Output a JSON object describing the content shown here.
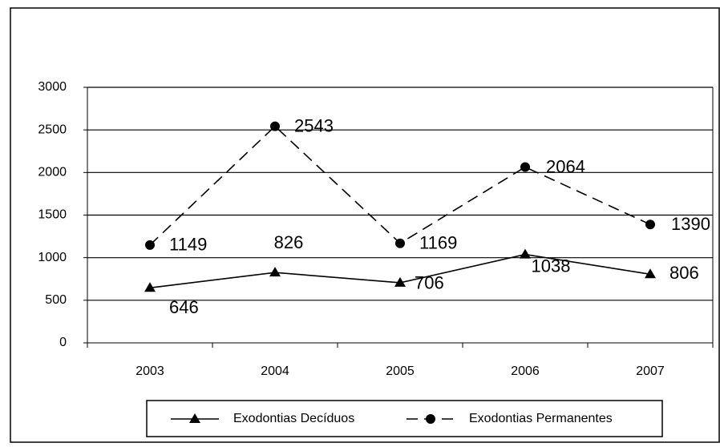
{
  "chart_data": {
    "type": "line",
    "categories": [
      "2003",
      "2004",
      "2005",
      "2006",
      "2007"
    ],
    "series": [
      {
        "name": "Exodontias Decíduos",
        "color": "#000000",
        "values": [
          646,
          826,
          706,
          1038,
          806
        ]
      },
      {
        "name": "Exodontias Permanentes",
        "color": "#000000",
        "values": [
          1149,
          2543,
          1169,
          2064,
          1390
        ]
      }
    ],
    "ylim": [
      0,
      3000
    ],
    "yticks": [
      0,
      500,
      1000,
      1500,
      2000,
      2500,
      3000
    ],
    "grid": true,
    "legend": "bottom"
  }
}
